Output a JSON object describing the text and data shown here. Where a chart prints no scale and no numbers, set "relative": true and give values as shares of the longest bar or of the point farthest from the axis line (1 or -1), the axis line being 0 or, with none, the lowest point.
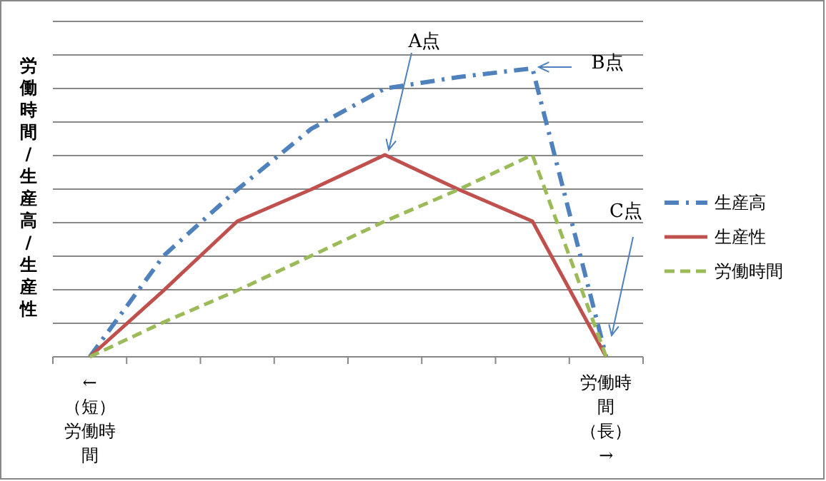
{
  "chart_data": {
    "type": "line",
    "relative": true,
    "ylabel": "労働時間/生産高/生産性",
    "categories": [
      "←（短）労働時間",
      null,
      null,
      null,
      null,
      null,
      null,
      "労働時間（長）→"
    ],
    "series": [
      {
        "name": "生産高",
        "color": "#4f81bd",
        "line_style": "dashdot",
        "values": [
          0,
          0.35,
          0.58,
          0.79,
          0.93,
          0.97,
          1,
          0
        ]
      },
      {
        "name": "生産性",
        "color": "#c0504d",
        "line_style": "solid",
        "values": [
          0,
          0.23,
          0.47,
          0.58,
          0.7,
          0.58,
          0.47,
          0
        ]
      },
      {
        "name": "労働時間",
        "color": "#9bbb59",
        "line_style": "dashed",
        "values": [
          0,
          0.12,
          0.23,
          0.35,
          0.47,
          0.58,
          0.7,
          0
        ]
      }
    ],
    "annotations": [
      "A点",
      "B点",
      "C点"
    ],
    "grid": "y",
    "legend": "right",
    "marker": "none"
  }
}
